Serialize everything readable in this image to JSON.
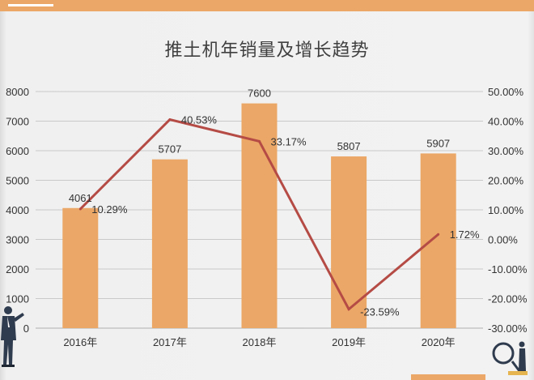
{
  "colors": {
    "bar": "#eba767",
    "line": "#b54b45",
    "text": "#333333",
    "grid": "#c9c9c9",
    "accent": "#eba767"
  },
  "decor": {
    "left_figure_icon": "businessman-pointing-icon",
    "right_figure_icon": "magnifying-glass-person-icon"
  },
  "chart_data": {
    "type": "bar",
    "title": "推土机年销量及增长趋势",
    "categories": [
      "2016年",
      "2017年",
      "2018年",
      "2019年",
      "2020年"
    ],
    "series": [
      {
        "type": "bar",
        "axis": "left",
        "values": [
          4061,
          5707,
          7600,
          5807,
          5907
        ],
        "labels": [
          "4061",
          "5707",
          "7600",
          "5807",
          "5907"
        ]
      },
      {
        "type": "line",
        "axis": "right",
        "values": [
          10.29,
          40.53,
          33.17,
          -23.59,
          1.72
        ],
        "labels": [
          "10.29%",
          "40.53%",
          "33.17%",
          "-23.59%",
          "1.72%"
        ]
      }
    ],
    "left_axis": {
      "ylim": [
        0,
        8000
      ],
      "ticks": [
        0,
        1000,
        2000,
        3000,
        4000,
        5000,
        6000,
        7000,
        8000
      ],
      "tick_labels": [
        "0",
        "1000",
        "2000",
        "3000",
        "4000",
        "5000",
        "6000",
        "7000",
        "8000"
      ]
    },
    "right_axis": {
      "ylim": [
        -30,
        50
      ],
      "ticks": [
        50,
        40,
        30,
        20,
        10,
        0,
        -10,
        -20,
        -30
      ],
      "tick_labels": [
        "50.00%",
        "40.00%",
        "30.00%",
        "20.00%",
        "10.00%",
        "0.00%",
        "-10.00%",
        "-20.00%",
        "-30.00%"
      ]
    },
    "grid": true,
    "legend": "none"
  }
}
